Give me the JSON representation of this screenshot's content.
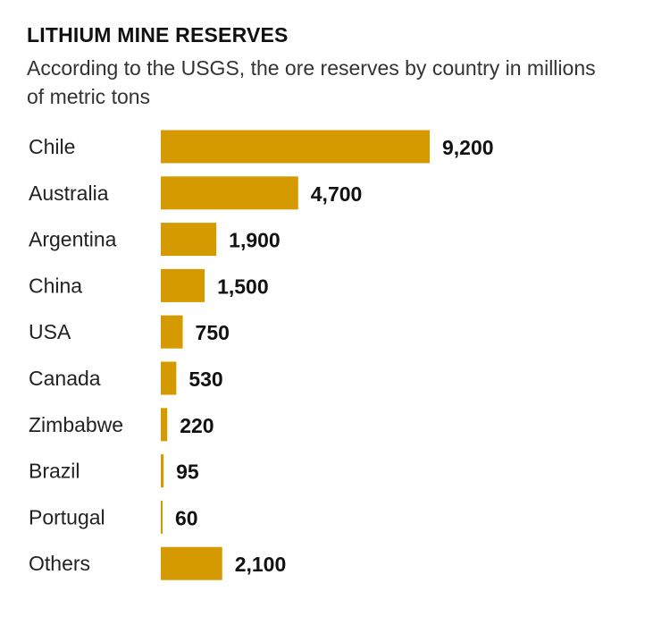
{
  "chart_data": {
    "type": "bar",
    "orientation": "horizontal",
    "title": "LITHIUM MINE RESERVES",
    "subtitle": "According to the USGS, the ore reserves by country in millions of metric tons",
    "categories": [
      "Chile",
      "Australia",
      "Argentina",
      "China",
      "USA",
      "Canada",
      "Zimbabwe",
      "Brazil",
      "Portugal",
      "Others"
    ],
    "values": [
      9200,
      4700,
      1900,
      1500,
      750,
      530,
      220,
      95,
      60,
      2100
    ],
    "value_labels": [
      "9,200",
      "4,700",
      "1,900",
      "1,500",
      "750",
      "530",
      "220",
      "95",
      "60",
      "2,100"
    ],
    "bar_color": "#D49A00",
    "grid": false,
    "legend": "none"
  }
}
